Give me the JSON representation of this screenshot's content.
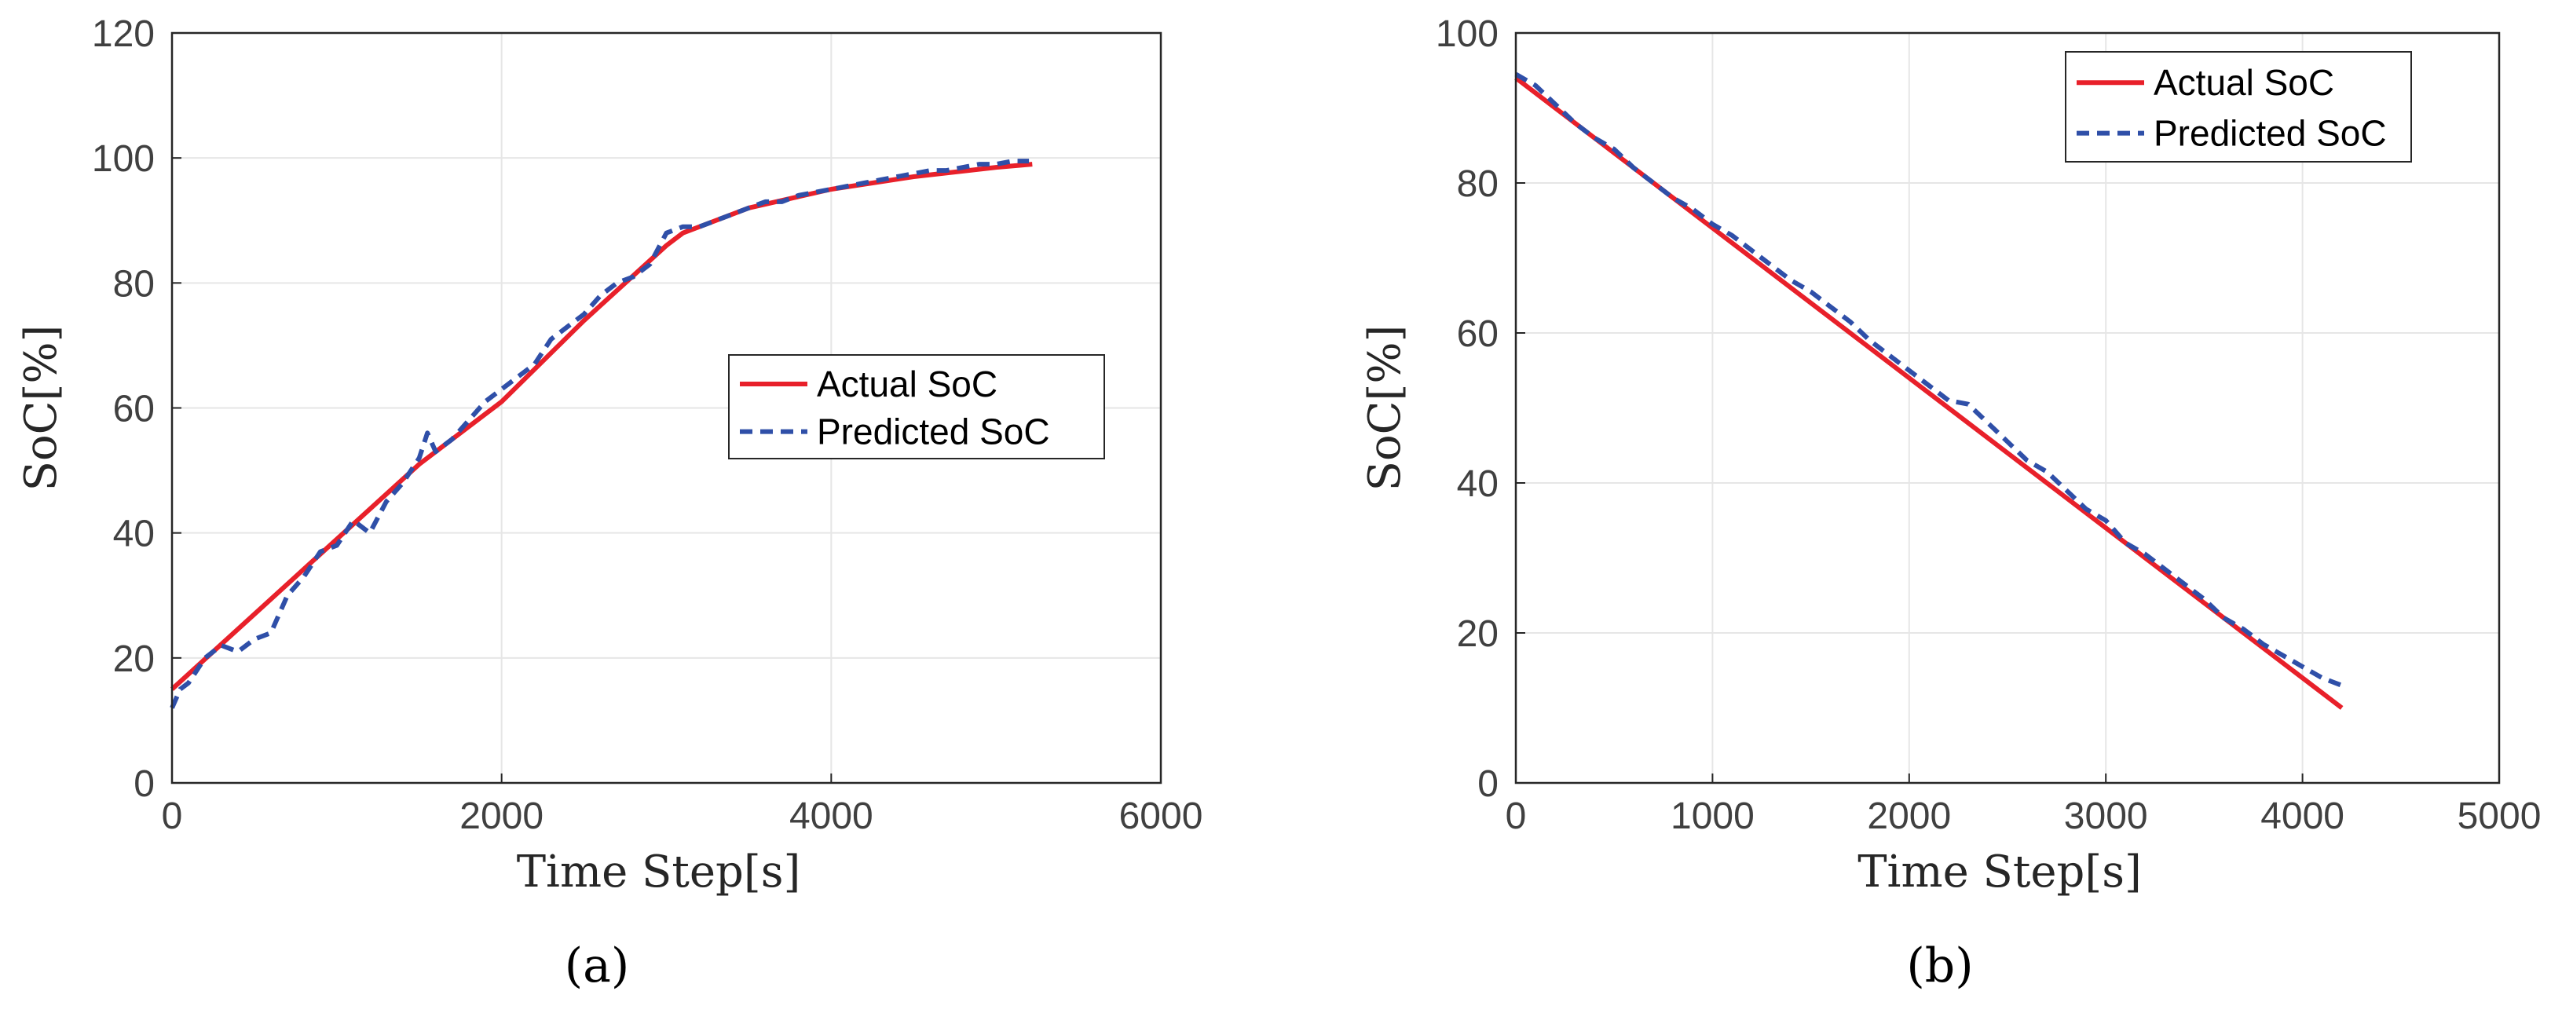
{
  "figure": {
    "panels": [
      "(a)",
      "(b)"
    ]
  },
  "chart_data": [
    {
      "type": "line",
      "panel_label": "(a)",
      "title": "",
      "xlabel": "Time Step[s]",
      "ylabel": "SoC[%]",
      "xlim": [
        0,
        6000
      ],
      "ylim": [
        0,
        120
      ],
      "xticks": [
        0,
        2000,
        4000,
        6000
      ],
      "yticks": [
        0,
        20,
        40,
        60,
        80,
        100,
        120
      ],
      "grid": true,
      "legend_position": "center-right",
      "colors": {
        "actual": "#e8202a",
        "predicted": "#2f4fa8"
      },
      "series": [
        {
          "name": "Actual SoC",
          "style": "solid",
          "x": [
            0,
            500,
            1000,
            1500,
            2000,
            2500,
            3000,
            3100,
            3500,
            4000,
            4500,
            5000,
            5220
          ],
          "values": [
            15,
            27,
            39,
            51,
            61,
            74,
            86,
            88,
            92,
            95,
            97,
            98.5,
            99
          ]
        },
        {
          "name": "Predicted SoC",
          "style": "dashed",
          "x": [
            0,
            50,
            100,
            200,
            300,
            400,
            500,
            600,
            700,
            800,
            900,
            1000,
            1100,
            1200,
            1300,
            1400,
            1500,
            1550,
            1600,
            1700,
            1800,
            1900,
            2000,
            2100,
            2200,
            2300,
            2400,
            2500,
            2600,
            2700,
            2800,
            2900,
            3000,
            3100,
            3200,
            3300,
            3400,
            3500,
            3600,
            3700,
            3800,
            3900,
            4000,
            4100,
            4200,
            4300,
            4400,
            4500,
            4600,
            4700,
            4800,
            4900,
            5000,
            5100,
            5200
          ],
          "values": [
            12,
            15,
            16,
            20,
            22,
            21,
            23,
            24,
            30,
            33,
            37,
            38,
            42,
            40,
            45,
            48,
            52,
            56,
            53,
            55,
            58,
            61,
            63,
            65,
            67,
            71,
            73,
            75,
            78,
            80,
            81,
            83,
            88,
            89,
            89,
            90,
            91,
            92,
            93,
            93,
            94,
            94.5,
            95,
            95.5,
            96,
            96.5,
            97,
            97.5,
            98,
            98,
            98.5,
            99,
            99,
            99.5,
            99.5
          ]
        }
      ]
    },
    {
      "type": "line",
      "panel_label": "(b)",
      "title": "",
      "xlabel": "Time Step[s]",
      "ylabel": "SoC[%]",
      "xlim": [
        0,
        5000
      ],
      "ylim": [
        0,
        100
      ],
      "xticks": [
        0,
        1000,
        2000,
        3000,
        4000,
        5000
      ],
      "yticks": [
        0,
        20,
        40,
        60,
        80,
        100
      ],
      "grid": true,
      "legend_position": "top-right",
      "colors": {
        "actual": "#e8202a",
        "predicted": "#2f4fa8"
      },
      "series": [
        {
          "name": "Actual SoC",
          "style": "solid",
          "x": [
            0,
            4200
          ],
          "values": [
            94,
            10
          ]
        },
        {
          "name": "Predicted SoC",
          "style": "dashed",
          "x": [
            0,
            100,
            200,
            300,
            400,
            500,
            600,
            700,
            800,
            900,
            1000,
            1100,
            1200,
            1300,
            1400,
            1500,
            1600,
            1700,
            1800,
            1900,
            2000,
            2100,
            2200,
            2300,
            2400,
            2500,
            2600,
            2700,
            2800,
            2900,
            3000,
            3100,
            3200,
            3300,
            3400,
            3500,
            3600,
            3700,
            3800,
            3900,
            4000,
            4100,
            4200
          ],
          "values": [
            94.5,
            93,
            90.5,
            88,
            86,
            84.5,
            82,
            80,
            78,
            76.5,
            74.5,
            73,
            71,
            69,
            67,
            65.5,
            63.5,
            61.5,
            59,
            57,
            55,
            53,
            51,
            50.5,
            48,
            45.5,
            43,
            41.5,
            39,
            36.5,
            35,
            32,
            30.5,
            28.5,
            26.5,
            24.5,
            22,
            20.5,
            18.5,
            17,
            15.5,
            14,
            13
          ]
        }
      ]
    }
  ]
}
